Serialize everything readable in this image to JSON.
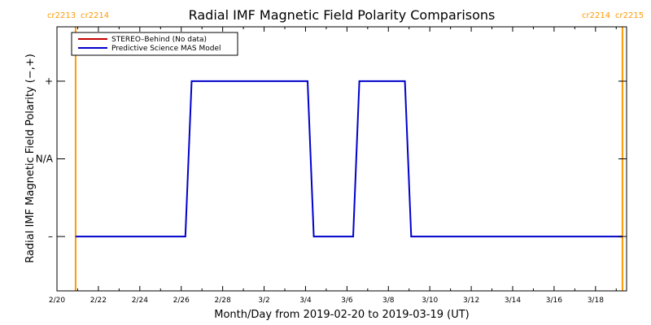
{
  "chart_data": {
    "type": "line",
    "title": "Radial IMF Magnetic Field Polarity Comparisons",
    "xlabel": "Month/Day from 2019-02-20 to 2019-03-19 (UT)",
    "ylabel": "Radial IMF Magnetic Field Polarity (−,+)",
    "x_start": "2019-02-20",
    "xlim_days": [
      0,
      27.5
    ],
    "ylim": [
      -1.7,
      1.7
    ],
    "x_ticks": [
      {
        "day": 0,
        "label": "2/20"
      },
      {
        "day": 2,
        "label": "2/22"
      },
      {
        "day": 4,
        "label": "2/24"
      },
      {
        "day": 6,
        "label": "2/26"
      },
      {
        "day": 8,
        "label": "2/28"
      },
      {
        "day": 10,
        "label": "3/2"
      },
      {
        "day": 12,
        "label": "3/4"
      },
      {
        "day": 14,
        "label": "3/6"
      },
      {
        "day": 16,
        "label": "3/8"
      },
      {
        "day": 18,
        "label": "3/10"
      },
      {
        "day": 20,
        "label": "3/12"
      },
      {
        "day": 22,
        "label": "3/14"
      },
      {
        "day": 24,
        "label": "3/16"
      },
      {
        "day": 26,
        "label": "3/18"
      }
    ],
    "y_ticks": [
      {
        "value": 1,
        "label": "+"
      },
      {
        "value": 0,
        "label": "N/A"
      },
      {
        "value": -1,
        "label": "–"
      }
    ],
    "series": [
      {
        "name": "STEREO–Behind (No data)",
        "color": "#c00000",
        "points": []
      },
      {
        "name": "Predictive Science MAS Model",
        "color": "#0000cc",
        "points": [
          [
            0.9,
            -1
          ],
          [
            6.2,
            -1
          ],
          [
            6.5,
            1
          ],
          [
            12.1,
            1
          ],
          [
            12.4,
            -1
          ],
          [
            14.3,
            -1
          ],
          [
            14.6,
            1
          ],
          [
            16.8,
            1
          ],
          [
            17.1,
            -1
          ],
          [
            27.3,
            -1
          ]
        ]
      }
    ],
    "carrington_markers": [
      {
        "day": 0.9,
        "left_label": "cr2213",
        "right_label": "cr2214"
      },
      {
        "day": 27.3,
        "left_label": "cr2214",
        "right_label": "cr2215"
      }
    ],
    "marker_color": "#ff9900",
    "legend_position": "top-left",
    "grid": false
  }
}
